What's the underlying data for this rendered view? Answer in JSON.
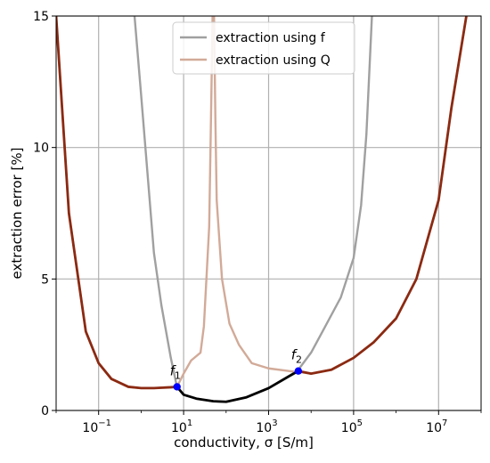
{
  "chart_data": {
    "type": "line",
    "xlabel": "conductivity, σ [S/m]",
    "ylabel": "extraction error [%]",
    "x_scale": "log",
    "xlim": [
      0.01,
      100000000
    ],
    "ylim": [
      0,
      15
    ],
    "grid": true,
    "legend_position": "top-center",
    "x_ticks": [
      {
        "value": 0.1,
        "base": "10",
        "exp": "−1"
      },
      {
        "value": 10,
        "base": "10",
        "exp": "1"
      },
      {
        "value": 1000,
        "base": "10",
        "exp": "3"
      },
      {
        "value": 100000,
        "base": "10",
        "exp": "5"
      },
      {
        "value": 10000000,
        "base": "10",
        "exp": "7"
      }
    ],
    "y_ticks": [
      0,
      5,
      10,
      15
    ],
    "colors": {
      "f_series": "#a0a0a0",
      "q_series": "#d2aa98",
      "outer_envelope": "#8b2a12",
      "combined_minimum": "#000000",
      "crossover_marker": "#0000ff"
    },
    "series": [
      {
        "name": "extraction using f",
        "color": "#a0a0a0",
        "points": [
          [
            0.7,
            15
          ],
          [
            1,
            12
          ],
          [
            1.5,
            8.5
          ],
          [
            2,
            6.0
          ],
          [
            3,
            4.0
          ],
          [
            5,
            2.0
          ],
          [
            7,
            0.88
          ],
          [
            10,
            0.6
          ],
          [
            20,
            0.45
          ],
          [
            50,
            0.35
          ],
          [
            100,
            0.33
          ],
          [
            300,
            0.5
          ],
          [
            1000,
            0.85
          ],
          [
            3000,
            1.3
          ],
          [
            5000,
            1.55
          ],
          [
            10000,
            2.2
          ],
          [
            20000,
            3.1
          ],
          [
            50000,
            4.3
          ],
          [
            100000,
            5.8
          ],
          [
            150000,
            7.8
          ],
          [
            200000,
            10.5
          ],
          [
            270000,
            15
          ]
        ]
      },
      {
        "name": "extraction using Q",
        "color": "#d2aa98",
        "points": [
          [
            0.01,
            15
          ],
          [
            0.02,
            7.5
          ],
          [
            0.05,
            3.0
          ],
          [
            0.1,
            1.8
          ],
          [
            0.2,
            1.2
          ],
          [
            0.5,
            0.9
          ],
          [
            1,
            0.85
          ],
          [
            2,
            0.85
          ],
          [
            5,
            0.9
          ],
          [
            7,
            0.9
          ],
          [
            10,
            1.4
          ],
          [
            15,
            1.9
          ],
          [
            25,
            2.2
          ],
          [
            30,
            3.2
          ],
          [
            40,
            7.0
          ],
          [
            45,
            12.0
          ],
          [
            48,
            15
          ],
          [
            52,
            15
          ],
          [
            56,
            11.0
          ],
          [
            60,
            8.0
          ],
          [
            80,
            5.0
          ],
          [
            120,
            3.3
          ],
          [
            200,
            2.5
          ],
          [
            400,
            1.8
          ],
          [
            1000,
            1.6
          ],
          [
            3000,
            1.5
          ],
          [
            6000,
            1.45
          ],
          [
            10000,
            1.4
          ],
          [
            30000,
            1.55
          ],
          [
            100000,
            2.0
          ],
          [
            300000,
            2.6
          ],
          [
            1000000,
            3.5
          ],
          [
            3000000,
            5.0
          ],
          [
            10000000,
            8.0
          ],
          [
            20000000,
            11.5
          ],
          [
            45000000,
            15
          ]
        ]
      },
      {
        "name": "",
        "color": "#8b2a12",
        "points": [
          [
            0.01,
            15
          ],
          [
            0.02,
            7.5
          ],
          [
            0.05,
            3.0
          ],
          [
            0.1,
            1.8
          ],
          [
            0.2,
            1.2
          ],
          [
            0.5,
            0.9
          ],
          [
            1,
            0.85
          ],
          [
            2,
            0.85
          ],
          [
            5,
            0.88
          ],
          [
            7,
            0.9
          ]
        ]
      },
      {
        "name": "",
        "color": "#8b2a12",
        "points": [
          [
            5000,
            1.5
          ],
          [
            10000,
            1.4
          ],
          [
            30000,
            1.55
          ],
          [
            100000,
            2.0
          ],
          [
            300000,
            2.6
          ],
          [
            1000000,
            3.5
          ],
          [
            3000000,
            5.0
          ],
          [
            10000000,
            8.0
          ],
          [
            20000000,
            11.5
          ],
          [
            45000000,
            15
          ]
        ]
      },
      {
        "name": "",
        "color": "#000000",
        "points": [
          [
            7,
            0.9
          ],
          [
            10,
            0.6
          ],
          [
            20,
            0.45
          ],
          [
            50,
            0.35
          ],
          [
            100,
            0.33
          ],
          [
            300,
            0.5
          ],
          [
            1000,
            0.85
          ],
          [
            3000,
            1.3
          ],
          [
            5000,
            1.5
          ]
        ]
      }
    ],
    "markers": [
      {
        "label_base": "f",
        "label_sub": "1",
        "x": 7,
        "y": 0.9
      },
      {
        "label_base": "f",
        "label_sub": "2",
        "x": 5000,
        "y": 1.5
      }
    ]
  }
}
